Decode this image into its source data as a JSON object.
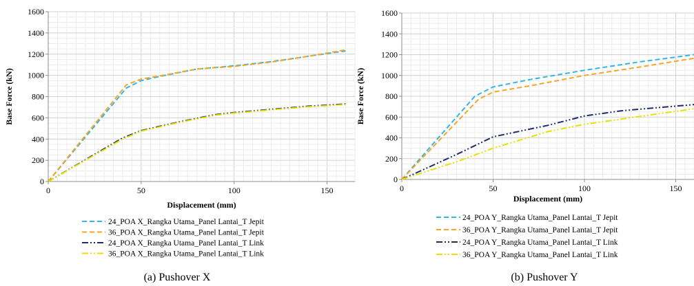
{
  "chart_data": [
    {
      "type": "line",
      "title": "",
      "caption": "(a)   Pushover X",
      "xlabel": "Displacement (mm)",
      "ylabel": "Base Force (kN)",
      "xlim": [
        0,
        165
      ],
      "ylim": [
        0,
        1600
      ],
      "x_ticks": [
        0,
        50,
        100,
        150
      ],
      "y_ticks": [
        0,
        200,
        400,
        600,
        800,
        1000,
        1200,
        1400,
        1600
      ],
      "grid": true,
      "legend_position": "bottom",
      "series": [
        {
          "name": "24_POA X_Rangka Utama_Panel Lantai_T Jepit",
          "color": "#33b5e5",
          "dash": "dash",
          "x": [
            0,
            42,
            50,
            60,
            80,
            100,
            120,
            140,
            160
          ],
          "y": [
            0,
            880,
            950,
            990,
            1060,
            1090,
            1130,
            1180,
            1230
          ]
        },
        {
          "name": "36_POA X_Rangka Utama_Panel Lantai_T Jepit",
          "color": "#f5a623",
          "dash": "dash",
          "x": [
            0,
            42,
            50,
            60,
            80,
            100,
            120,
            140,
            160
          ],
          "y": [
            0,
            910,
            965,
            995,
            1060,
            1085,
            1125,
            1180,
            1240
          ]
        },
        {
          "name": "24_POA X_Rangka Utama_Panel Lantai_T Link",
          "color": "#1f2a6b",
          "dash": "dashdotdot",
          "x": [
            0,
            40,
            50,
            70,
            90,
            100,
            120,
            140,
            160
          ],
          "y": [
            0,
            410,
            480,
            560,
            630,
            650,
            680,
            710,
            730
          ]
        },
        {
          "name": "36_POA X_Rangka Utama_Panel Lantai_T Link",
          "color": "#e8e000",
          "dash": "dashdotdot",
          "x": [
            0,
            40,
            50,
            70,
            90,
            100,
            120,
            140,
            160
          ],
          "y": [
            0,
            400,
            475,
            555,
            625,
            645,
            675,
            705,
            725
          ]
        }
      ]
    },
    {
      "type": "line",
      "title": "",
      "caption": "(b) Pushover Y",
      "xlabel": "Displacement (mm)",
      "ylabel": "Base Force (kN)",
      "xlim": [
        0,
        160
      ],
      "ylim": [
        0,
        1600
      ],
      "x_ticks": [
        0,
        50,
        100,
        150
      ],
      "y_ticks": [
        0,
        200,
        400,
        600,
        800,
        1000,
        1200,
        1400,
        1600
      ],
      "grid": true,
      "legend_position": "bottom",
      "series": [
        {
          "name": "24_POA Y_Rangka Utama_Panel Lantai_T Jepit",
          "color": "#33b5e5",
          "dash": "dash",
          "x": [
            0,
            40,
            50,
            70,
            100,
            130,
            160
          ],
          "y": [
            0,
            800,
            890,
            960,
            1050,
            1130,
            1200
          ]
        },
        {
          "name": "36_POA Y_Rangka Utama_Panel Lantai_T Jepit",
          "color": "#f5a623",
          "dash": "dash",
          "x": [
            0,
            42,
            50,
            70,
            100,
            130,
            160
          ],
          "y": [
            0,
            770,
            840,
            900,
            1000,
            1080,
            1165
          ]
        },
        {
          "name": "24_POA Y_Rangka Utama_Panel Lantai_T Link",
          "color": "#1f2a6b",
          "dash": "dashdotdot",
          "x": [
            0,
            30,
            50,
            80,
            100,
            120,
            140,
            160
          ],
          "y": [
            0,
            240,
            410,
            520,
            610,
            660,
            690,
            720
          ]
        },
        {
          "name": "36_POA Y_Rangka Utama_Panel Lantai_T Link",
          "color": "#e8e000",
          "dash": "dashdotdot",
          "x": [
            0,
            30,
            50,
            80,
            100,
            120,
            140,
            160
          ],
          "y": [
            0,
            170,
            300,
            460,
            530,
            580,
            630,
            680
          ]
        }
      ]
    }
  ]
}
